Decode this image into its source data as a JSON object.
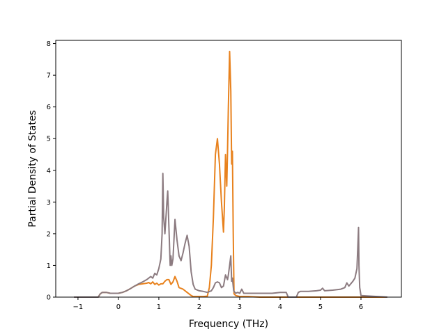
{
  "chart_data": {
    "type": "line",
    "xlabel": "Frequency (THz)",
    "ylabel": "Partial Density of States",
    "xlim": [
      -1.55,
      7.0
    ],
    "ylim": [
      0,
      8.1
    ],
    "xticks": [
      -1,
      0,
      1,
      2,
      3,
      4,
      5,
      6
    ],
    "yticks": [
      0,
      1,
      2,
      3,
      4,
      5,
      6,
      7,
      8
    ],
    "grid": false,
    "colors": {
      "series_a": "#e8821e",
      "series_b": "#8c7b80"
    },
    "series": [
      {
        "color": "#e8821e",
        "x": [
          -1.0,
          -0.5,
          -0.45,
          -0.4,
          -0.3,
          -0.2,
          -0.1,
          0.0,
          0.1,
          0.2,
          0.3,
          0.4,
          0.5,
          0.6,
          0.7,
          0.75,
          0.8,
          0.85,
          0.9,
          0.95,
          1.0,
          1.05,
          1.1,
          1.15,
          1.2,
          1.25,
          1.3,
          1.35,
          1.4,
          1.45,
          1.5,
          1.6,
          1.7,
          1.8,
          1.85,
          2.0,
          2.1,
          2.2,
          2.25,
          2.3,
          2.35,
          2.4,
          2.45,
          2.5,
          2.55,
          2.6,
          2.62,
          2.65,
          2.68,
          2.7,
          2.72,
          2.75,
          2.78,
          2.8,
          2.82,
          2.84,
          2.86,
          2.88,
          2.9,
          3.0,
          3.1,
          3.2,
          3.5,
          4.0,
          4.5,
          5.0,
          5.5,
          5.8,
          5.9,
          6.0,
          6.65
        ],
        "y": [
          0,
          0,
          0.1,
          0.15,
          0.15,
          0.12,
          0.12,
          0.12,
          0.15,
          0.2,
          0.27,
          0.35,
          0.4,
          0.42,
          0.44,
          0.46,
          0.42,
          0.48,
          0.4,
          0.44,
          0.38,
          0.42,
          0.42,
          0.5,
          0.55,
          0.55,
          0.4,
          0.48,
          0.65,
          0.5,
          0.3,
          0.25,
          0.15,
          0.05,
          0.02,
          0.02,
          0.02,
          0.03,
          0.3,
          1.0,
          2.5,
          4.5,
          5.0,
          4.2,
          3.0,
          2.05,
          2.8,
          4.5,
          3.5,
          4.6,
          6.0,
          7.75,
          6.5,
          4.2,
          4.6,
          2.0,
          0.1,
          0.08,
          0.05,
          0.02,
          0.02,
          0.02,
          0,
          0,
          0,
          0,
          0,
          0,
          0,
          0,
          0
        ]
      },
      {
        "color": "#8c7b80",
        "x": [
          -1.1,
          -0.5,
          -0.45,
          -0.4,
          -0.3,
          -0.2,
          -0.1,
          0.0,
          0.1,
          0.2,
          0.3,
          0.4,
          0.5,
          0.6,
          0.7,
          0.75,
          0.8,
          0.85,
          0.9,
          0.95,
          1.0,
          1.05,
          1.08,
          1.1,
          1.12,
          1.15,
          1.18,
          1.2,
          1.22,
          1.25,
          1.28,
          1.3,
          1.32,
          1.35,
          1.4,
          1.45,
          1.5,
          1.55,
          1.6,
          1.65,
          1.7,
          1.75,
          1.8,
          1.85,
          1.9,
          2.0,
          2.1,
          2.2,
          2.3,
          2.35,
          2.4,
          2.45,
          2.5,
          2.55,
          2.6,
          2.65,
          2.7,
          2.72,
          2.75,
          2.78,
          2.8,
          2.82,
          2.85,
          2.9,
          2.95,
          3.0,
          3.05,
          3.1,
          3.2,
          3.5,
          3.8,
          4.0,
          4.15,
          4.2,
          4.4,
          4.45,
          4.5,
          4.7,
          4.9,
          5.0,
          5.05,
          5.1,
          5.3,
          5.5,
          5.6,
          5.65,
          5.7,
          5.8,
          5.85,
          5.9,
          5.92,
          5.94,
          5.95,
          5.97,
          6.0,
          6.65
        ],
        "y": [
          0,
          0,
          0.1,
          0.15,
          0.15,
          0.12,
          0.12,
          0.12,
          0.15,
          0.2,
          0.27,
          0.35,
          0.42,
          0.48,
          0.55,
          0.6,
          0.65,
          0.6,
          0.75,
          0.7,
          0.9,
          1.2,
          2.0,
          3.9,
          2.5,
          2.0,
          2.6,
          3.0,
          3.35,
          2.2,
          1.0,
          1.3,
          1.0,
          1.2,
          2.45,
          1.8,
          1.3,
          1.15,
          1.4,
          1.7,
          1.95,
          1.6,
          0.8,
          0.4,
          0.25,
          0.2,
          0.18,
          0.15,
          0.2,
          0.3,
          0.45,
          0.48,
          0.45,
          0.3,
          0.35,
          0.7,
          0.55,
          0.7,
          1.0,
          1.3,
          0.5,
          0.6,
          0.2,
          0.12,
          0.15,
          0.12,
          0.25,
          0.12,
          0.12,
          0.12,
          0.12,
          0.15,
          0.15,
          0.0,
          0.0,
          0.15,
          0.18,
          0.18,
          0.2,
          0.22,
          0.28,
          0.2,
          0.22,
          0.25,
          0.3,
          0.45,
          0.35,
          0.5,
          0.6,
          0.9,
          1.5,
          2.2,
          1.0,
          0.3,
          0.05,
          0
        ]
      }
    ]
  }
}
